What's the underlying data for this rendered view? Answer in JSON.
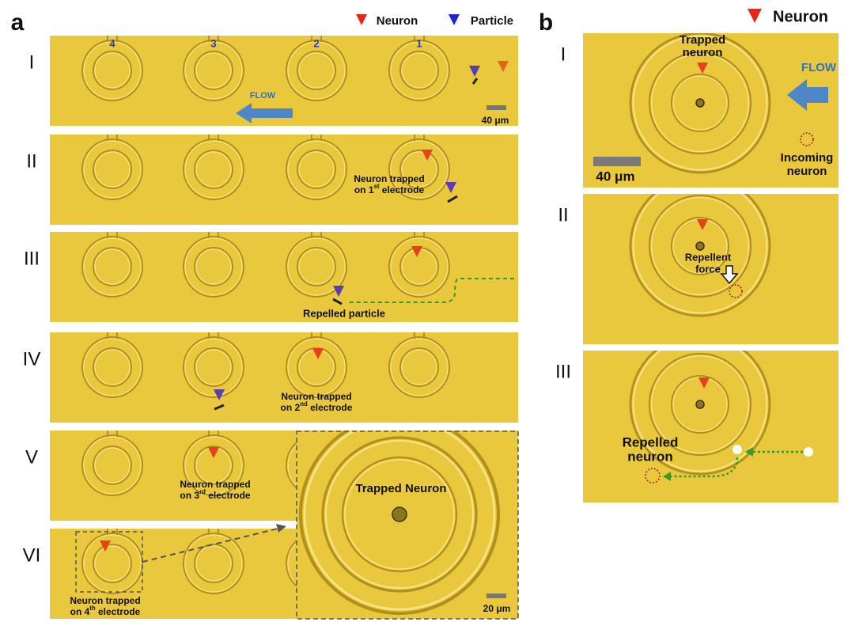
{
  "panel_a": {
    "label": "a",
    "legend": [
      "Neuron",
      "Particle"
    ],
    "rows": [
      {
        "label": "I",
        "electrodes": [
          "4",
          "3",
          "2",
          "1"
        ],
        "flow": "FLOW",
        "scale": "40 μm"
      },
      {
        "label": "II",
        "note": {
          "line1": "Neuron trapped",
          "line2": [
            "on 1",
            "st",
            " electrode"
          ]
        }
      },
      {
        "label": "III",
        "note": "Repelled particle"
      },
      {
        "label": "IV",
        "note": {
          "line1": "Neuron trapped",
          "line2": [
            "on 2",
            "nd",
            " electrode"
          ]
        }
      },
      {
        "label": "V",
        "note": {
          "line1": "Neuron trapped",
          "line2": [
            "on 3",
            "rd",
            " electrode"
          ]
        }
      },
      {
        "label": "VI",
        "note": {
          "line1": "Neuron trapped",
          "line2": [
            "on 4",
            "th",
            " electrode"
          ]
        }
      }
    ],
    "inset": {
      "title": "Trapped Neuron",
      "scale": "20 μm"
    }
  },
  "panel_b": {
    "label": "b",
    "legend": "Neuron",
    "rows": [
      {
        "label": "I",
        "trapped": [
          "Trapped",
          "neuron"
        ],
        "flow": "FLOW",
        "scale": "40 μm",
        "incoming": [
          "Incoming",
          "neuron"
        ]
      },
      {
        "label": "II",
        "force": [
          "Repellent",
          "force"
        ]
      },
      {
        "label": "III",
        "repelled": [
          "Repelled",
          "neuron"
        ]
      }
    ]
  }
}
